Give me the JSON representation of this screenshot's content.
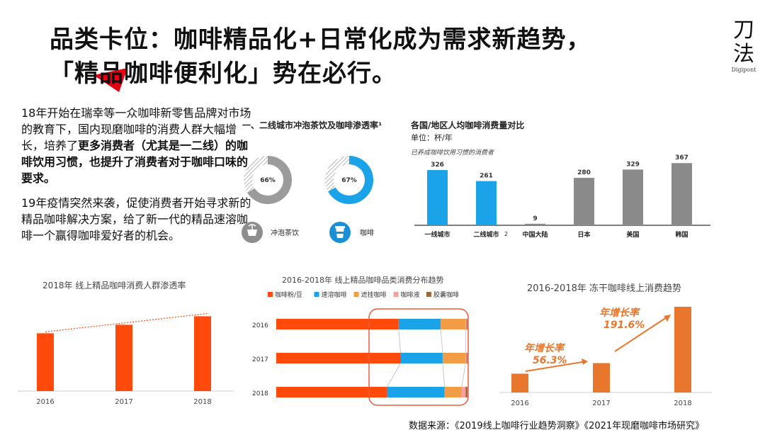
{
  "title": {
    "line1": "品类卡位：咖啡精品化+日常化成为需求新趋势，",
    "line2": "「精品咖啡便利化」势在必行。"
  },
  "logo": {
    "main_top": "刀",
    "main_bottom": "法",
    "sub": "Digipont"
  },
  "body": {
    "p1_a": "18年开始在瑞幸等一众咖啡新零售品牌对市场的教育下，国内现磨咖啡的消费人群大幅增长，培养了",
    "p1_b": "更多消费者（尤其是一二线）的咖啡饮用习惯，也提升了消费者对于咖啡口味的要求。",
    "p2": "19年疫情突然来袭，促使消费者开始寻求新的精品咖啡解决方案，给了新一代的精品速溶咖啡一个赢得咖啡爱好者的机会。"
  },
  "source": "数据来源：《2019线上咖啡行业趋势洞察》《2021年现磨咖啡市场研究》",
  "colors": {
    "orange": "#ff4a0c",
    "blue": "#1aa3e8",
    "gray": "#8a8a8a",
    "light_orange": "#f29d46",
    "pink": "#f7a1a1",
    "brown": "#a1693a",
    "dark_orange": "#e8762c",
    "red_accent": "#e60012"
  },
  "chart_data": [
    {
      "id": "penetration",
      "type": "pie",
      "title": "一、二线城市冲泡茶饮及咖啡渗透率¹",
      "items": [
        {
          "label": "冲泡茶饮",
          "value": 66,
          "display": "66%",
          "icon": "tea-cup-icon"
        },
        {
          "label": "咖啡",
          "value": 67,
          "display": "67%",
          "icon": "coffee-cup-icon"
        }
      ]
    },
    {
      "id": "per-capita",
      "type": "bar",
      "title": "各国/地区人均咖啡消费量对比",
      "unit": "单位：杯/年",
      "annotation": "已养成咖啡饮用习惯的消费者",
      "categories": [
        "一线城市",
        "二线城市",
        "中国大陆",
        "日本",
        "美国",
        "韩国"
      ],
      "category_suffix": [
        "",
        "2",
        "",
        "",
        "",
        ""
      ],
      "values": [
        326,
        261,
        9,
        280,
        329,
        367
      ],
      "bar_colors": [
        "blue",
        "blue",
        "gray",
        "gray",
        "gray",
        "gray"
      ],
      "ylim": [
        0,
        400
      ]
    },
    {
      "id": "penetration-trend",
      "type": "bar",
      "title": "2018年 线上精品咖啡消费人群渗透率",
      "categories": [
        "2016",
        "2017",
        "2018"
      ],
      "values": [
        0.68,
        0.78,
        0.88
      ],
      "value_note": "relative bar heights, no printed values",
      "trend_line": true
    },
    {
      "id": "category-share",
      "type": "bar",
      "stacked": true,
      "orientation": "horizontal",
      "title": "2016-2018年 线上精品咖啡品类消费分布趋势",
      "legend": [
        "咖啡粉/豆",
        "速溶咖啡",
        "滤挂咖啡",
        "咖啡液",
        "胶囊咖啡"
      ],
      "legend_colors": [
        "orange",
        "blue",
        "light_orange",
        "pink",
        "brown"
      ],
      "categories": [
        "2016",
        "2017",
        "2018"
      ],
      "series": [
        {
          "name": "咖啡粉/豆",
          "values": [
            64,
            65,
            58
          ]
        },
        {
          "name": "速溶咖啡",
          "values": [
            22,
            22,
            30
          ]
        },
        {
          "name": "滤挂咖啡",
          "values": [
            13,
            12,
            9
          ]
        },
        {
          "name": "咖啡液",
          "values": [
            0.5,
            0.5,
            2
          ]
        },
        {
          "name": "胶囊咖啡",
          "values": [
            0.5,
            0.5,
            1
          ]
        }
      ]
    },
    {
      "id": "freeze-dried",
      "type": "bar",
      "title": "2016-2018年 冻干咖啡线上消费趋势",
      "categories": [
        "2016",
        "2017",
        "2018"
      ],
      "values": [
        1,
        1.563,
        4.558
      ],
      "growth_labels": [
        {
          "label": "年增长率",
          "value": "56.3%"
        },
        {
          "label": "年增长率",
          "value": "191.6%"
        }
      ]
    }
  ]
}
